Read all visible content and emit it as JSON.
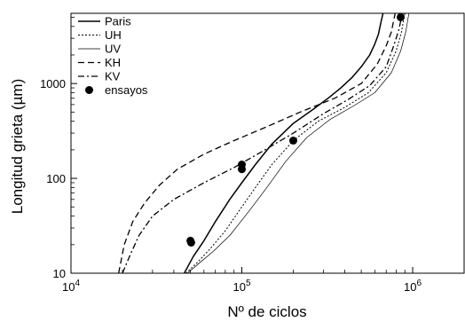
{
  "chart_data": {
    "type": "line",
    "title": "",
    "xlabel": "Nº de ciclos",
    "ylabel": "Longitud grieta (µm)",
    "xscale": "log",
    "yscale": "log",
    "xlim": [
      10000,
      2000000
    ],
    "ylim": [
      10,
      5500
    ],
    "grid": false,
    "legend_position": "top-left",
    "x_ticks": [
      {
        "value": 10000,
        "base": "10",
        "exp": "4"
      },
      {
        "value": 100000,
        "base": "10",
        "exp": "5"
      },
      {
        "value": 1000000,
        "base": "10",
        "exp": "6"
      }
    ],
    "y_ticks": [
      {
        "value": 10,
        "label": "10"
      },
      {
        "value": 100,
        "label": "100"
      },
      {
        "value": 1000,
        "label": "1000"
      }
    ],
    "series": [
      {
        "name": "Paris",
        "style": "solid",
        "points": [
          [
            46000,
            10
          ],
          [
            52000,
            15
          ],
          [
            60000,
            22
          ],
          [
            70000,
            35
          ],
          [
            85000,
            60
          ],
          [
            100000,
            90
          ],
          [
            120000,
            140
          ],
          [
            150000,
            230
          ],
          [
            200000,
            380
          ],
          [
            260000,
            530
          ],
          [
            320000,
            700
          ],
          [
            380000,
            900
          ],
          [
            440000,
            1150
          ],
          [
            500000,
            1500
          ],
          [
            560000,
            2000
          ],
          [
            600000,
            2600
          ],
          [
            630000,
            3300
          ],
          [
            650000,
            4300
          ],
          [
            670000,
            5500
          ]
        ]
      },
      {
        "name": "UH",
        "style": "dotted",
        "points": [
          [
            47000,
            10
          ],
          [
            55000,
            13
          ],
          [
            65000,
            18
          ],
          [
            80000,
            28
          ],
          [
            100000,
            50
          ],
          [
            120000,
            80
          ],
          [
            150000,
            140
          ],
          [
            200000,
            250
          ],
          [
            280000,
            400
          ],
          [
            400000,
            560
          ],
          [
            550000,
            800
          ],
          [
            700000,
            1300
          ],
          [
            800000,
            2200
          ],
          [
            860000,
            3500
          ],
          [
            900000,
            5500
          ]
        ]
      },
      {
        "name": "UV",
        "style": "thin",
        "points": [
          [
            48000,
            10
          ],
          [
            57000,
            13
          ],
          [
            68000,
            17
          ],
          [
            85000,
            25
          ],
          [
            110000,
            45
          ],
          [
            140000,
            80
          ],
          [
            180000,
            150
          ],
          [
            240000,
            270
          ],
          [
            330000,
            420
          ],
          [
            450000,
            580
          ],
          [
            600000,
            800
          ],
          [
            750000,
            1300
          ],
          [
            850000,
            2200
          ],
          [
            910000,
            3500
          ],
          [
            950000,
            5500
          ]
        ]
      },
      {
        "name": "KH",
        "style": "dashed",
        "points": [
          [
            19000,
            10
          ],
          [
            20500,
            20
          ],
          [
            23000,
            35
          ],
          [
            27000,
            55
          ],
          [
            33000,
            85
          ],
          [
            42000,
            125
          ],
          [
            60000,
            180
          ],
          [
            90000,
            250
          ],
          [
            140000,
            350
          ],
          [
            220000,
            500
          ],
          [
            350000,
            700
          ],
          [
            500000,
            1000
          ],
          [
            620000,
            1600
          ],
          [
            700000,
            2500
          ],
          [
            750000,
            3500
          ],
          [
            790000,
            5500
          ]
        ]
      },
      {
        "name": "KV",
        "style": "dashdot",
        "points": [
          [
            20000,
            10
          ],
          [
            22000,
            15
          ],
          [
            25000,
            25
          ],
          [
            30000,
            40
          ],
          [
            40000,
            60
          ],
          [
            60000,
            90
          ],
          [
            90000,
            130
          ],
          [
            130000,
            190
          ],
          [
            200000,
            300
          ],
          [
            300000,
            480
          ],
          [
            420000,
            680
          ],
          [
            560000,
            950
          ],
          [
            700000,
            1500
          ],
          [
            780000,
            2600
          ],
          [
            830000,
            3700
          ],
          [
            870000,
            5500
          ]
        ]
      },
      {
        "name": "ensayos",
        "style": "markers",
        "points": [
          [
            50000,
            22
          ],
          [
            50500,
            21
          ],
          [
            100000,
            140
          ],
          [
            100000,
            125
          ],
          [
            200000,
            250
          ],
          [
            850000,
            5000
          ]
        ]
      }
    ]
  }
}
